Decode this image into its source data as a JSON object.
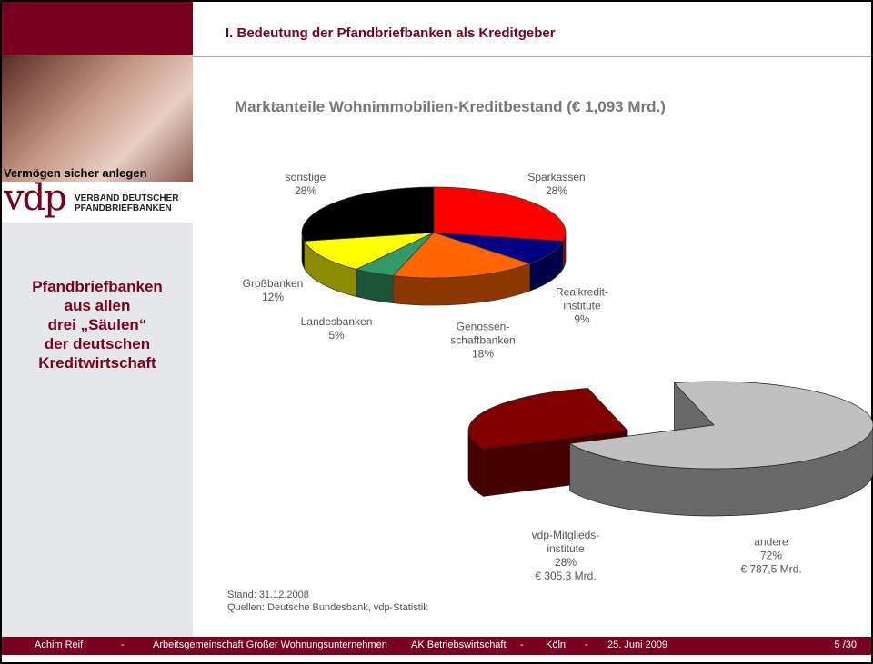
{
  "header": {
    "title": "I. Bedeutung der Pfandbriefbanken als Kreditgeber"
  },
  "sidebar": {
    "tagline": "Vermögen sicher anlegen",
    "logo": "vdp",
    "logo_text": [
      "VERBAND DEUTSCHER",
      "PFANDBRIEFBANKEN"
    ],
    "text": "Pfandbriefbanken\naus allen\ndrei „Säulen“\nder deutschen\nKreditwirtschaft"
  },
  "chart_data": [
    {
      "type": "pie",
      "title": "Marktanteile Wohnimmobilien-Kreditbestand (€ 1,093 Mrd.)",
      "categories": [
        "Sparkassen",
        "Realkredit-\ninstitute",
        "Genossen-\nschaftbanken",
        "Landesbanken",
        "Großbanken",
        "sonstige"
      ],
      "values": [
        28,
        9,
        18,
        5,
        12,
        28
      ],
      "value_labels": [
        "28%",
        "9%",
        "18%",
        "5%",
        "12%",
        "28%"
      ],
      "colors": [
        "#ff0000",
        "#000080",
        "#ff6600",
        "#339966",
        "#ffff00",
        "#000000"
      ]
    },
    {
      "type": "pie",
      "categories": [
        "vdp-Mitglieds-\ninstitute",
        "andere"
      ],
      "values": [
        28,
        72
      ],
      "value_labels": [
        "28%",
        "72%"
      ],
      "amount_labels": [
        "€ 305,3 Mrd.",
        "€ 787,5 Mrd."
      ],
      "colors": [
        "#800000",
        "#c0c0c0"
      ]
    }
  ],
  "notes": [
    "Stand: 31.12.2008",
    "Quellen: Deutsche Bundesbank, vdp-Statistik"
  ],
  "footer": {
    "items": [
      "Achim Reif",
      "-",
      "Arbeitsgemeinschaft Großer Wohnungsunternehmen",
      "AK Betriebswirtschaft",
      "-",
      "Köln",
      "-",
      "25. Juni 2009"
    ],
    "page": "5 /30"
  }
}
